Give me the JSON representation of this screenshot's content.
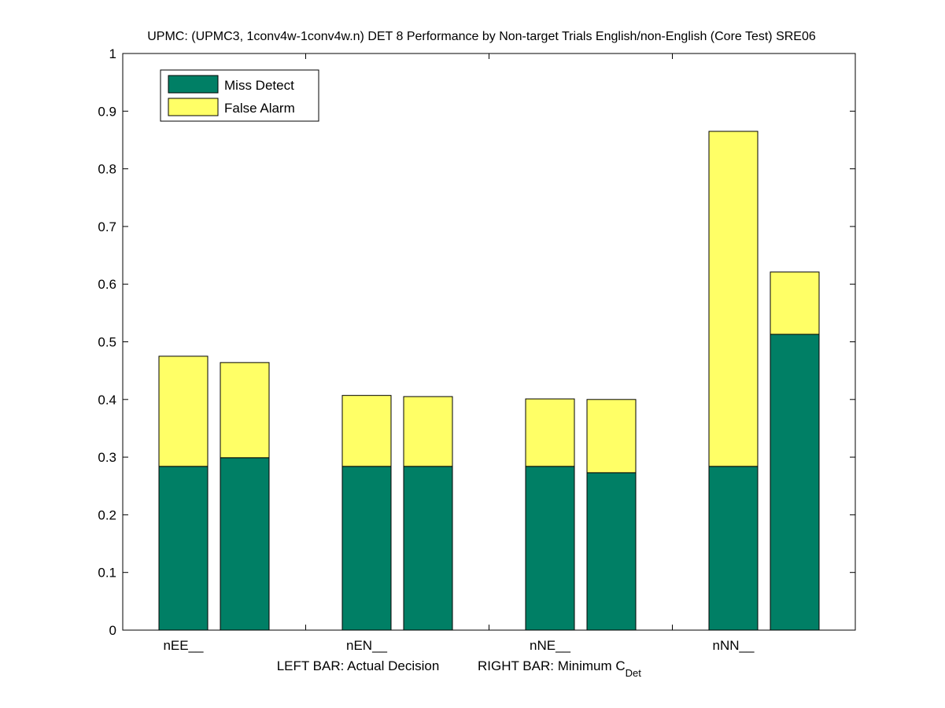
{
  "chart_data": {
    "type": "bar",
    "title": "UPMC: (UPMC3, 1conv4w-1conv4w.n) DET 8 Performance by Non-target Trials English/non-English (Core Test) SRE06",
    "categories": [
      "nEE__",
      "nEN__",
      "nNE__",
      "nNN__"
    ],
    "bars_per_category": [
      "LEFT BAR: Actual Decision",
      "RIGHT BAR: Minimum C"
    ],
    "xlabel_left": "LEFT BAR: Actual Decision",
    "xlabel_right": "RIGHT BAR: Minimum C",
    "xlabel_right_subscript": "Det",
    "ylim": [
      0,
      1
    ],
    "yticks": [
      "0",
      "0.1",
      "0.2",
      "0.3",
      "0.4",
      "0.5",
      "0.6",
      "0.7",
      "0.8",
      "0.9",
      "1"
    ],
    "stacked": true,
    "legend_position": "top-left",
    "series": [
      {
        "name": "Miss Detect",
        "color": "#007f65",
        "values": [
          [
            0.284,
            0.299
          ],
          [
            0.284,
            0.284
          ],
          [
            0.284,
            0.273
          ],
          [
            0.284,
            0.513
          ]
        ]
      },
      {
        "name": "False Alarm",
        "color": "#ffff66",
        "values": [
          [
            0.191,
            0.165
          ],
          [
            0.123,
            0.121
          ],
          [
            0.117,
            0.127
          ],
          [
            0.581,
            0.108
          ]
        ]
      }
    ]
  }
}
